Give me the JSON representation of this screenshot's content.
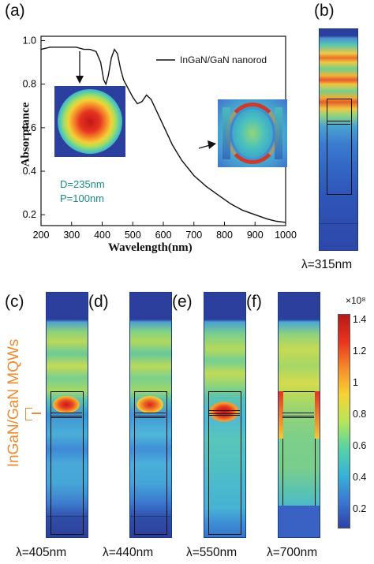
{
  "panels": {
    "a": "(a)",
    "b": "(b)",
    "c": "(c)",
    "d": "(d)",
    "e": "(e)",
    "f": "(f)"
  },
  "chart_data": {
    "type": "line",
    "xlabel": "Wavelength(nm)",
    "ylabel": "Absorptance",
    "xlim": [
      200,
      1000
    ],
    "ylim": [
      0.15,
      1.02
    ],
    "xticks": [
      200,
      300,
      400,
      500,
      600,
      700,
      800,
      900,
      1000
    ],
    "yticks": [
      0.2,
      0.4,
      0.6,
      0.8,
      1.0
    ],
    "ytick_labels": [
      "0.2",
      "0.4",
      "0.6",
      "0.8",
      "1.0"
    ],
    "legend": "InGaN/GaN nanorod",
    "annotations": [
      "D=235nm",
      "P=100nm"
    ],
    "series": [
      {
        "name": "InGaN/GaN nanorod",
        "x": [
          200,
          230,
          260,
          290,
          315,
          340,
          360,
          380,
          395,
          405,
          412,
          420,
          430,
          440,
          450,
          460,
          470,
          485,
          500,
          515,
          530,
          545,
          560,
          580,
          600,
          630,
          660,
          700,
          740,
          780,
          820,
          860,
          900,
          940,
          970,
          1000
        ],
        "y": [
          0.96,
          0.97,
          0.97,
          0.97,
          0.97,
          0.96,
          0.96,
          0.95,
          0.9,
          0.82,
          0.8,
          0.84,
          0.92,
          0.96,
          0.94,
          0.87,
          0.82,
          0.78,
          0.74,
          0.71,
          0.72,
          0.75,
          0.73,
          0.67,
          0.61,
          0.52,
          0.45,
          0.38,
          0.33,
          0.29,
          0.25,
          0.22,
          0.2,
          0.18,
          0.17,
          0.165
        ]
      }
    ]
  },
  "wavelength_labels": {
    "b": "λ=315nm",
    "c": "λ=405nm",
    "d": "λ=440nm",
    "e": "λ=550nm",
    "f": "λ=700nm"
  },
  "side_label": "InGaN/GaN MQWs",
  "colorbar": {
    "exponent": "×10⁸",
    "ticks": [
      "1.4",
      "1.2",
      "1",
      "0.8",
      "0.6",
      "0.4",
      "0.2"
    ],
    "colors": [
      "#b71a18",
      "#e8331e",
      "#f58b2b",
      "#f6d335",
      "#b9e55a",
      "#57d3a3",
      "#39b3d6",
      "#3a78d2",
      "#2f42a8"
    ]
  },
  "accent_color": "#f08a2c"
}
